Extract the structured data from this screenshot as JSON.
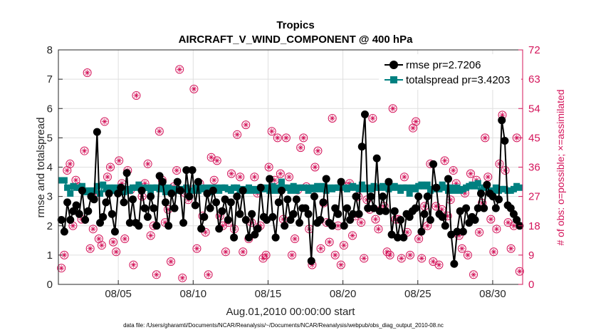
{
  "chart_data": {
    "type": "line",
    "title": "Tropics",
    "subtitle": "AIRCRAFT_V_WIND_COMPONENT @ 400 hPa",
    "xlabel": "Aug.01,2010 00:00:00 start",
    "ylabel": "rmse and totalspread",
    "ylabel_right": "# of obs: o=possible; ×=assimilated",
    "footer": "data file: /Users/gharamti/Documents/NCAR/Reanalysis/~/Documents/NCAR/Reanalysis/webpub/obs_diag_output_2010-08.nc",
    "xlim": [
      1,
      32
    ],
    "ylim": [
      0,
      8
    ],
    "ylim_right": [
      0,
      72
    ],
    "x_ticks": [
      5,
      10,
      15,
      20,
      25,
      30
    ],
    "x_tick_labels": [
      "08/05",
      "08/10",
      "08/15",
      "08/20",
      "08/25",
      "08/30"
    ],
    "y_ticks": [
      0,
      1,
      2,
      3,
      4,
      5,
      6,
      7,
      8
    ],
    "y_tick_labels": [
      "0",
      "1",
      "2",
      "3",
      "4",
      "5",
      "6",
      "7",
      "8"
    ],
    "y_right_ticks": [
      0,
      9,
      18,
      27,
      36,
      45,
      54,
      63,
      72
    ],
    "y_right_tick_labels": [
      "0",
      "9",
      "18",
      "27",
      "36",
      "45",
      "54",
      "63",
      "72"
    ],
    "grid": true,
    "legend_position": "top-right",
    "colors": {
      "rmse": "#000000",
      "totalspread": "#008080",
      "obs": "#d4145a",
      "axis": "#262626",
      "grid": "#dfdfdf"
    },
    "series": [
      {
        "name": "rmse",
        "legend_label": "rmse pr=2.7206",
        "values": [
          2.2,
          1.8,
          2.8,
          2.2,
          2.5,
          2.7,
          2.4,
          3.2,
          2.2,
          2.5,
          3.0,
          2.9,
          5.2,
          2.1,
          2.3,
          2.8,
          3.1,
          2.4,
          1.8,
          3.1,
          3.3,
          2.8,
          3.8,
          2.1,
          2.9,
          2.1,
          2.0,
          3.2,
          2.6,
          2.3,
          3.0,
          2.6,
          2.0,
          3.7,
          3.5,
          2.8,
          2.0,
          3.1,
          2.6,
          3.5,
          3.2,
          2.1,
          3.9,
          3.0,
          3.9,
          2.7,
          3.5,
          1.9,
          2.3,
          3.1,
          2.6,
          3.2,
          2.8,
          1.9,
          2.5,
          2.9,
          2.2,
          2.8,
          1.6,
          3.0,
          2.4,
          3.2,
          2.2,
          1.6,
          2.4,
          1.7,
          1.9,
          3.3,
          2.3,
          2.2,
          3.6,
          2.3,
          1.6,
          2.8,
          3.2,
          2.0,
          2.9,
          2.2,
          2.4,
          2.9,
          2.1,
          2.6,
          2.6,
          2.4,
          0.8,
          3.0,
          2.1,
          2.2,
          2.8,
          3.6,
          2.1,
          2.0,
          2.6,
          2.4,
          3.5,
          2.0,
          2.6,
          2.2,
          2.4,
          3.0,
          2.4,
          4.7,
          5.8,
          2.6,
          3.0,
          2.6,
          4.3,
          2.5,
          3.0,
          2.5,
          3.5,
          1.7,
          2.5,
          1.6,
          2.2,
          1.6,
          2.4,
          2.3,
          2.5,
          2.6,
          3.0,
          1.8,
          2.4,
          3.0,
          2.2,
          4.1,
          3.3,
          2.4,
          2.3,
          2.0,
          3.6,
          1.7,
          0.7,
          1.8,
          2.5,
          1.8,
          2.6,
          2.1,
          2.3,
          2.2,
          2.6,
          3.1,
          2.6,
          3.4,
          3.1,
          3.0,
          2.6,
          2.9,
          5.6,
          4.9,
          2.7,
          2.6,
          2.4,
          2.2,
          2.0
        ],
        "x_start": 1.2,
        "x_end": 31.8
      },
      {
        "name": "totalspread",
        "legend_label": "totalspread pr=3.4203",
        "values": [
          3.55,
          3.55,
          3.3,
          3.1,
          3.35,
          3.3,
          3.3,
          3.35,
          3.15,
          3.2,
          3.2,
          3.2,
          3.35,
          3.1,
          3.4,
          3.25,
          3.3,
          3.2,
          3.3,
          3.2,
          3.3,
          3.15,
          3.25,
          3.2,
          3.3,
          3.3,
          3.4,
          3.2,
          3.3,
          3.3,
          3.15,
          3.3,
          3.3,
          3.25,
          3.35,
          3.15,
          3.3,
          3.25,
          3.2,
          3.25,
          3.2,
          3.25,
          3.3,
          3.2,
          3.2,
          3.3,
          3.2,
          3.3,
          3.25,
          3.3,
          3.15,
          3.3,
          3.3,
          3.2,
          3.3,
          3.3,
          3.25,
          3.2,
          3.3,
          3.3,
          3.2,
          3.25,
          3.2,
          3.3,
          3.2,
          3.25,
          3.2,
          3.3,
          3.25,
          3.3,
          3.2,
          3.35,
          3.2,
          3.3,
          3.5,
          3.3,
          3.3,
          3.2,
          3.35,
          3.2,
          3.3,
          3.3,
          3.3,
          3.2,
          3.3,
          3.25,
          3.35,
          3.25,
          3.35,
          3.2,
          3.3,
          3.25,
          3.3,
          3.3,
          3.35,
          3.3,
          3.25,
          3.3,
          3.35,
          3.3,
          3.25,
          3.4,
          3.25,
          3.3,
          3.25,
          3.35,
          3.3,
          3.3,
          3.35,
          3.3,
          3.25,
          3.3,
          3.35,
          3.3,
          3.2,
          3.3,
          3.3,
          3.1,
          3.3,
          3.25,
          3.35,
          3.4,
          3.35,
          3.4,
          3.2,
          3.25,
          3.3,
          3.25,
          3.4,
          3.3,
          3.2,
          3.3,
          3.2,
          3.3,
          3.2,
          3.25,
          3.3,
          3.35,
          3.4,
          3.35,
          3.45,
          3.2,
          3.3,
          3.35,
          3.15,
          3.2,
          3.3,
          3.2,
          3.25,
          3.25,
          3.2,
          3.2,
          3.25,
          3.35,
          3.3
        ],
        "x_start": 1.2,
        "x_end": 31.8
      },
      {
        "name": "obs_possible",
        "axis": "right",
        "marker": "circle-asterisk",
        "x_start": 1.2,
        "x_end": 31.8,
        "values": [
          5,
          9,
          35,
          37,
          18,
          32,
          30,
          20,
          41,
          65,
          11,
          17,
          28,
          14,
          12,
          50,
          33,
          36,
          13,
          10,
          38,
          31,
          14,
          35,
          29,
          6,
          58,
          30,
          27,
          31,
          37,
          15,
          18,
          3,
          47,
          32,
          19,
          23,
          7,
          30,
          35,
          66,
          2,
          28,
          26,
          29,
          60,
          11,
          31,
          21,
          16,
          3,
          39,
          32,
          38,
          21,
          18,
          10,
          19,
          34,
          17,
          46,
          33,
          10,
          49,
          14,
          19,
          33,
          28,
          18,
          8,
          9,
          36,
          47,
          32,
          45,
          34,
          20,
          45,
          33,
          9,
          14,
          29,
          42,
          45,
          30,
          17,
          6,
          36,
          41,
          11,
          25,
          19,
          13,
          51,
          9,
          18,
          6,
          12,
          30,
          31,
          15,
          21,
          27,
          19,
          8,
          26,
          23,
          51,
          20,
          17,
          23,
          24,
          10,
          9,
          54,
          20,
          20,
          8,
          33,
          16,
          9,
          48,
          50,
          14,
          8,
          24,
          18,
          37,
          7,
          24,
          6,
          23,
          38,
          21,
          26,
          35,
          31,
          15,
          11,
          28,
          9,
          34,
          3,
          32,
          16,
          25,
          45,
          33,
          20,
          10,
          17,
          37,
          52,
          35,
          19,
          11,
          18,
          45,
          4
        ]
      }
    ]
  }
}
